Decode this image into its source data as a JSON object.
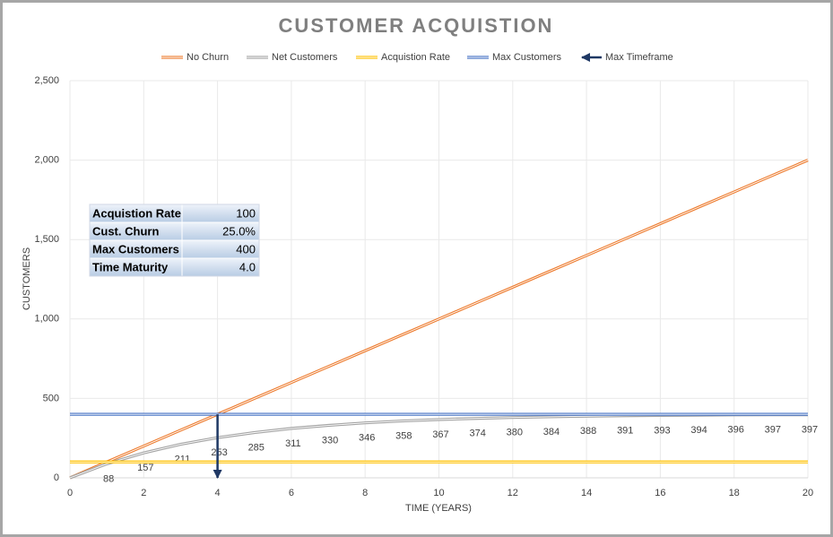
{
  "chart_data": {
    "type": "line",
    "title": "CUSTOMER ACQUISTION",
    "x_label": "TIME (YEARS)",
    "y_label": "CUSTOMERS",
    "x": [
      0,
      1,
      2,
      3,
      4,
      5,
      6,
      7,
      8,
      9,
      10,
      11,
      12,
      13,
      14,
      15,
      16,
      17,
      18,
      19,
      20
    ],
    "xlim": [
      0,
      20
    ],
    "xticks": [
      0,
      2,
      4,
      6,
      8,
      10,
      12,
      14,
      16,
      18,
      20
    ],
    "ylim": [
      0,
      2500
    ],
    "yticks": [
      0,
      500,
      {
        "value": 1000,
        "label": "1,000"
      },
      {
        "value": 1500,
        "label": "1,500"
      },
      {
        "value": 2000,
        "label": "2,000"
      },
      {
        "value": 2500,
        "label": "2,500"
      }
    ],
    "grid": true,
    "legend": "top",
    "series": [
      {
        "name": "No Churn",
        "color": "#ed7d31",
        "values": [
          0,
          100,
          200,
          300,
          400,
          500,
          600,
          700,
          800,
          900,
          1000,
          1100,
          1200,
          1300,
          1400,
          1500,
          1600,
          1700,
          1800,
          1900,
          2000
        ]
      },
      {
        "name": "Net Customers",
        "color": "#a5a5a5",
        "values": [
          0,
          88,
          157,
          211,
          253,
          285,
          311,
          330,
          346,
          358,
          367,
          374,
          380,
          384,
          388,
          391,
          393,
          394,
          396,
          397,
          397
        ],
        "data_labels": true
      },
      {
        "name": "Acquistion Rate",
        "color": "#ffc000",
        "values": [
          100,
          100,
          100,
          100,
          100,
          100,
          100,
          100,
          100,
          100,
          100,
          100,
          100,
          100,
          100,
          100,
          100,
          100,
          100,
          100,
          100
        ]
      },
      {
        "name": "Max Customers",
        "color": "#4472c4",
        "values": [
          400,
          400,
          400,
          400,
          400,
          400,
          400,
          400,
          400,
          400,
          400,
          400,
          400,
          400,
          400,
          400,
          400,
          400,
          400,
          400,
          400
        ]
      },
      {
        "name": "Max Timeframe",
        "color": "#1f3864",
        "x": [
          4,
          4
        ],
        "values": [
          400,
          0
        ],
        "arrow": true
      }
    ]
  },
  "table": {
    "rows": [
      [
        "Acquistion Rate",
        "100"
      ],
      [
        "Cust. Churn",
        "25.0%"
      ],
      [
        "Max Customers",
        "400"
      ],
      [
        "Time Maturity",
        "4.0"
      ]
    ]
  }
}
